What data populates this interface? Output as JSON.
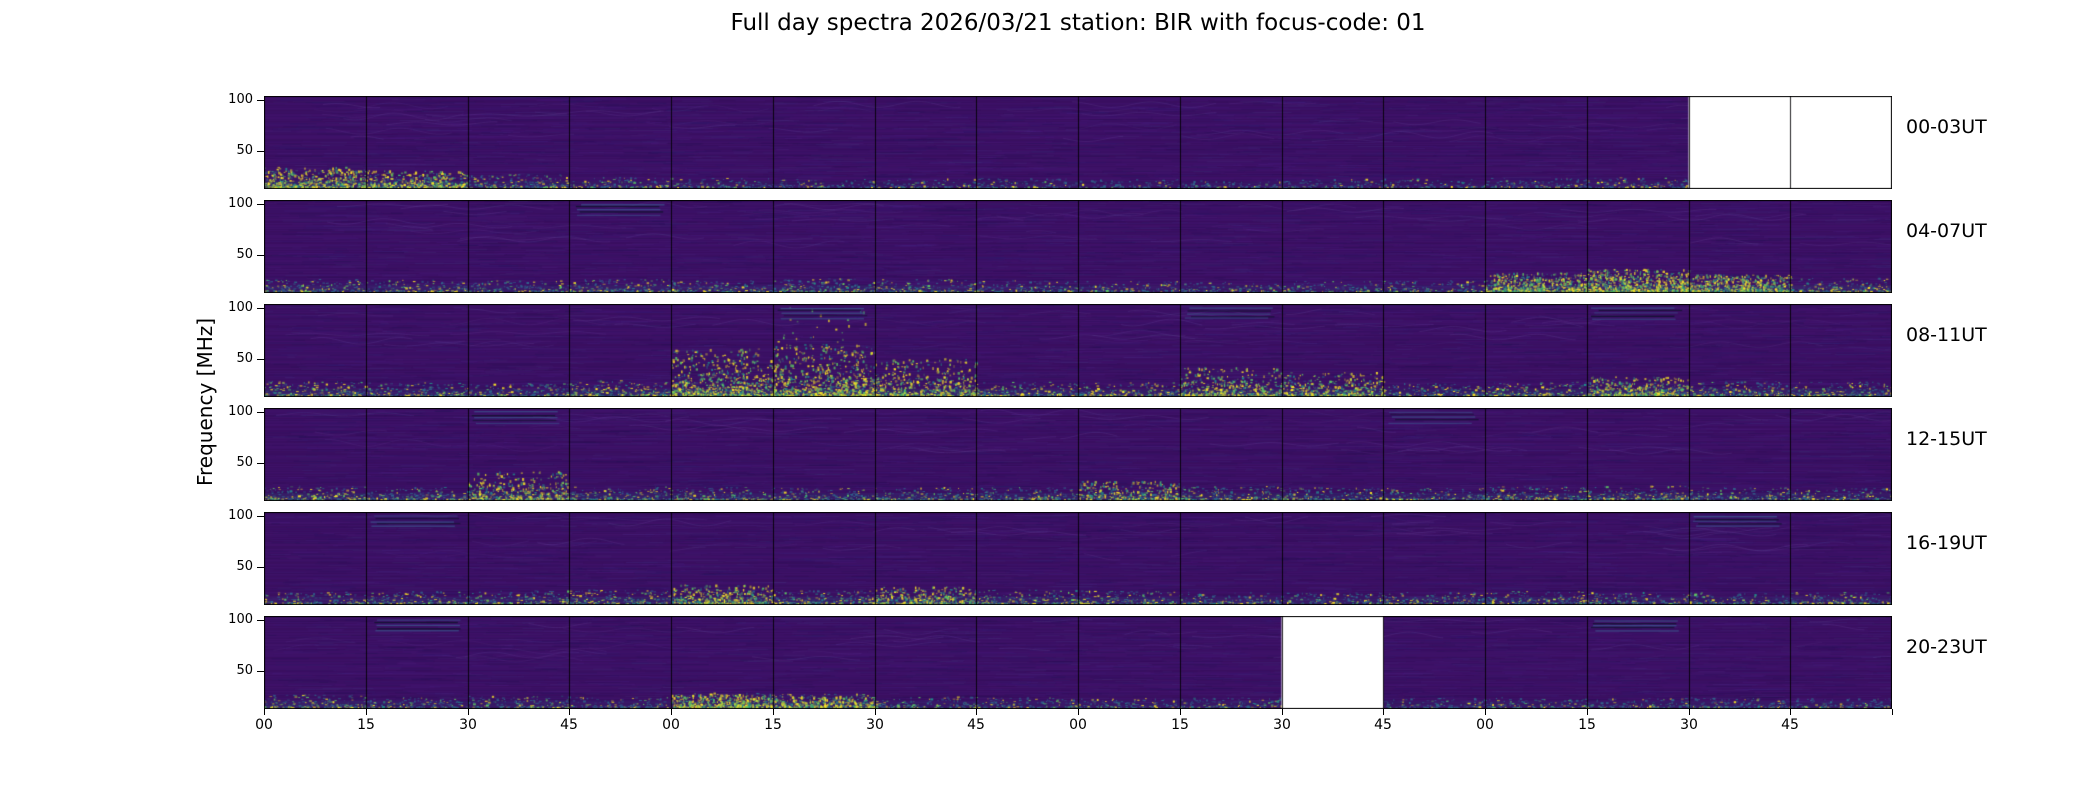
{
  "figure": {
    "title": "Full day spectra 2026/03/21 station: BIR with focus-code: 01",
    "ylabel": "Frequency [MHz]"
  },
  "chart_data": {
    "type": "heatmap",
    "subtype": "radio-spectrogram-grid",
    "title": "Full day spectra 2026/03/21 station: BIR with focus-code: 01",
    "station": "BIR",
    "date": "2026/03/21",
    "focus_code": "01",
    "ylabel": "Frequency [MHz]",
    "colormap": "viridis",
    "panels_per_row": 16,
    "minutes_per_panel": 15,
    "hours_per_row": 4,
    "y_tick_labels": [
      "100",
      "50"
    ],
    "x_tick_labels": [
      "00",
      "15",
      "30",
      "45",
      "00",
      "15",
      "30",
      "45",
      "00",
      "15",
      "30",
      "45",
      "00",
      "15",
      "30",
      "45"
    ],
    "legend_position": "none",
    "grid": "panel-separators",
    "colors": {
      "base": "#3c0f63",
      "texture": [
        "#50258c",
        "#2f2373",
        "#1f1450",
        "#453781"
      ],
      "texture_dark": "#1b0b3a",
      "wave": "#6b4aa0",
      "cool": "#31688e",
      "mid": "#21918c",
      "warm": "#5ec962",
      "hot": "#fde725",
      "streak_dark": "#10132e",
      "streak_light": "#3b528b",
      "missing": "#ffffff",
      "border": "#000000"
    },
    "rows": [
      {
        "label": "00-03UT",
        "missing_panels": [
          14,
          15
        ],
        "activity": [
          0.85,
          0.7,
          0.55,
          0.35,
          0.3,
          0.25,
          0.25,
          0.3,
          0.2,
          0.2,
          0.25,
          0.25,
          0.3,
          0.35,
          0,
          0
        ],
        "bursts": [
          {
            "panel": 0,
            "height": 0.22,
            "strength": 0.9
          },
          {
            "panel": 1,
            "height": 0.18,
            "strength": 0.7
          }
        ],
        "top_streaks": []
      },
      {
        "label": "04-07UT",
        "missing_panels": [],
        "activity": [
          0.5,
          0.45,
          0.4,
          0.5,
          0.45,
          0.55,
          0.5,
          0.4,
          0.35,
          0.3,
          0.35,
          0.4,
          0.8,
          0.95,
          0.85,
          0.6
        ],
        "bursts": [
          {
            "panel": 12,
            "height": 0.2,
            "strength": 1.1
          },
          {
            "panel": 13,
            "height": 0.24,
            "strength": 1.3
          },
          {
            "panel": 14,
            "height": 0.18,
            "strength": 1.0
          }
        ],
        "top_streaks": [
          3
        ]
      },
      {
        "label": "08-11UT",
        "missing_panels": [],
        "activity": [
          0.65,
          0.55,
          0.5,
          0.7,
          0.95,
          1.0,
          0.85,
          0.6,
          0.55,
          0.75,
          0.7,
          0.5,
          0.6,
          0.75,
          0.65,
          0.6
        ],
        "bursts": [
          {
            "panel": 4,
            "height": 0.5,
            "strength": 1.4
          },
          {
            "panel": 5,
            "height": 0.55,
            "strength": 1.5
          },
          {
            "panel": 5,
            "height": 0.95,
            "strength": 0.25
          },
          {
            "panel": 6,
            "height": 0.4,
            "strength": 1.0
          },
          {
            "panel": 9,
            "height": 0.3,
            "strength": 0.8
          },
          {
            "panel": 10,
            "height": 0.25,
            "strength": 0.7
          },
          {
            "panel": 13,
            "height": 0.2,
            "strength": 0.7
          }
        ],
        "top_streaks": [
          5,
          9,
          13
        ]
      },
      {
        "label": "12-15UT",
        "missing_panels": [],
        "activity": [
          0.6,
          0.5,
          0.6,
          0.55,
          0.5,
          0.45,
          0.5,
          0.5,
          0.55,
          0.6,
          0.5,
          0.45,
          0.55,
          0.6,
          0.5,
          0.45
        ],
        "bursts": [
          {
            "panel": 2,
            "height": 0.3,
            "strength": 0.8
          },
          {
            "panel": 8,
            "height": 0.2,
            "strength": 0.6
          }
        ],
        "top_streaks": [
          2,
          11
        ]
      },
      {
        "label": "16-19UT",
        "missing_panels": [],
        "activity": [
          0.45,
          0.5,
          0.55,
          0.6,
          0.65,
          0.6,
          0.65,
          0.6,
          0.55,
          0.45,
          0.4,
          0.45,
          0.5,
          0.45,
          0.4,
          0.45
        ],
        "bursts": [
          {
            "panel": 4,
            "height": 0.2,
            "strength": 0.7
          },
          {
            "panel": 6,
            "height": 0.18,
            "strength": 0.6
          }
        ],
        "top_streaks": [
          1,
          14
        ]
      },
      {
        "label": "20-23UT",
        "missing_panels": [
          10
        ],
        "activity": [
          0.55,
          0.4,
          0.45,
          0.35,
          0.7,
          0.6,
          0.4,
          0.35,
          0.3,
          0.35,
          0,
          0.3,
          0.35,
          0.3,
          0.35,
          0.3
        ],
        "bursts": [
          {
            "panel": 4,
            "height": 0.14,
            "strength": 1.0
          },
          {
            "panel": 5,
            "height": 0.12,
            "strength": 0.8
          }
        ],
        "top_streaks": [
          1,
          13
        ]
      }
    ]
  }
}
